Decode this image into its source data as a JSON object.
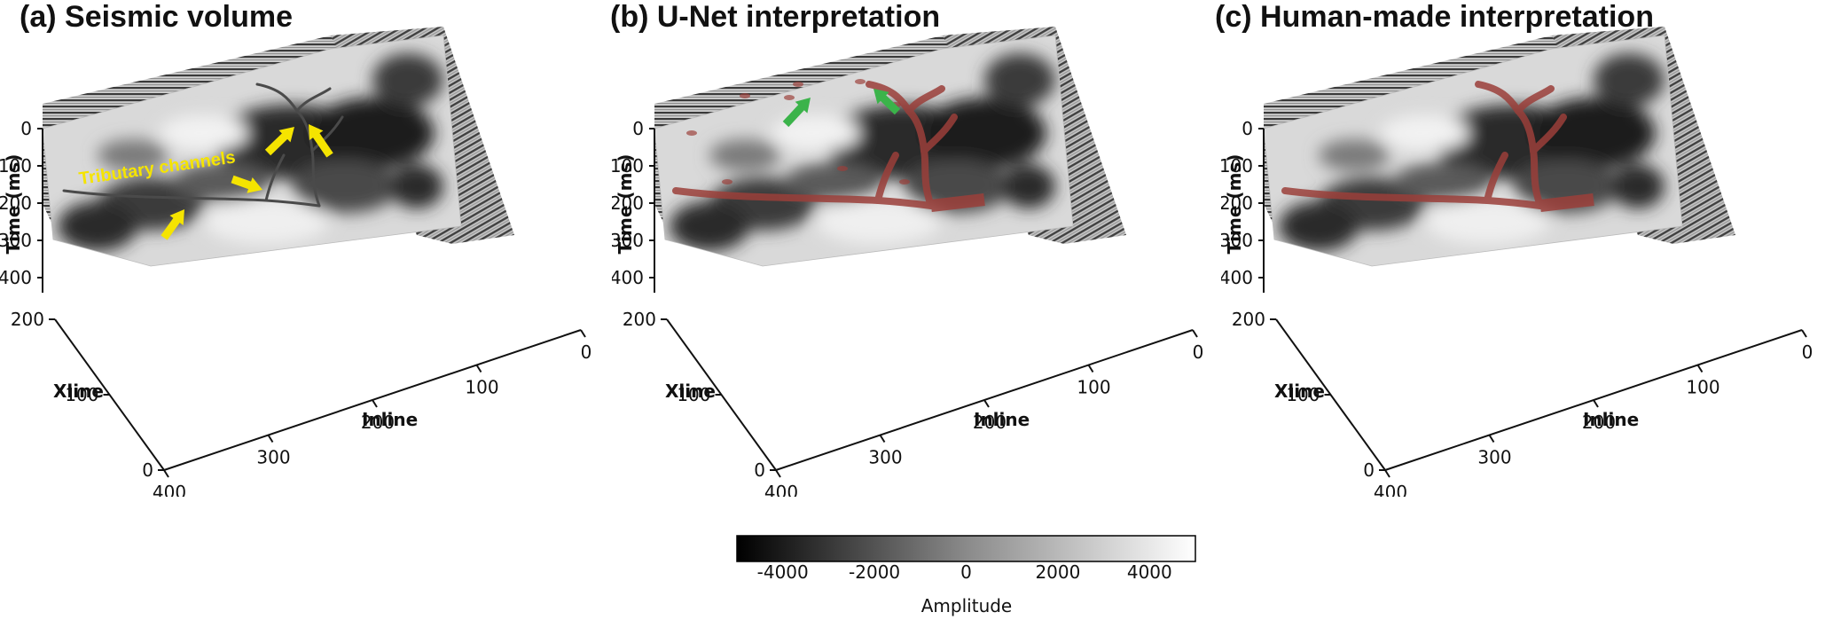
{
  "panels": [
    {
      "letter": "(a)",
      "title": "Seismic volume",
      "overlay": "none",
      "annotation": "Tributary channels",
      "arrow_color": "#f5e400"
    },
    {
      "letter": "(b)",
      "title": "U-Net interpretation",
      "overlay": "predicted",
      "arrow_color": "#3bb34a"
    },
    {
      "letter": "(c)",
      "title": "Human-made interpretation",
      "overlay": "manual"
    }
  ],
  "axes": {
    "time_label": "Time (ms)",
    "time_ticks": [
      "0",
      "100",
      "200",
      "300",
      "400"
    ],
    "xline_label": "Xline",
    "xline_ticks": [
      "200",
      "100",
      "0"
    ],
    "inline_label": "Inline",
    "inline_ticks": [
      "0",
      "100",
      "200",
      "300",
      "400"
    ]
  },
  "colorbar": {
    "label": "Amplitude",
    "ticks": [
      "-4000",
      "-2000",
      "0",
      "2000",
      "4000"
    ],
    "tick_values": [
      -4000,
      -2000,
      0,
      2000,
      4000
    ],
    "min": -5000,
    "max": 5000
  },
  "colors": {
    "channel": "#9b3f3a",
    "colorbar_low": "#000000",
    "colorbar_high": "#ffffff"
  }
}
